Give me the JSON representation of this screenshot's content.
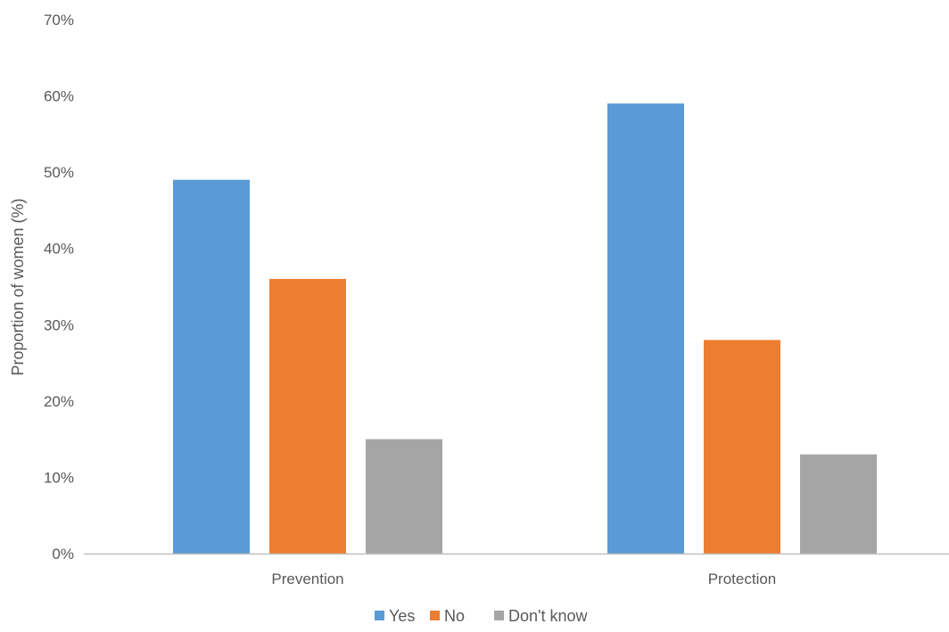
{
  "chart_data": {
    "type": "bar",
    "categories": [
      "Prevention",
      "Protection"
    ],
    "series": [
      {
        "name": "Yes",
        "values": [
          49,
          59
        ],
        "color": "#5B9BD5"
      },
      {
        "name": "No",
        "values": [
          36,
          28
        ],
        "color": "#ED7D31"
      },
      {
        "name": "Don't know",
        "values": [
          15,
          13
        ],
        "color": "#A5A5A5"
      }
    ],
    "title": "",
    "xlabel": "",
    "ylabel": "Proportion of women (%)",
    "ylim": [
      0,
      70
    ],
    "yticks": [
      "0%",
      "10%",
      "20%",
      "30%",
      "40%",
      "50%",
      "60%",
      "70%"
    ],
    "grid": false,
    "legend_position": "bottom",
    "axis_color": "#BFBFBF",
    "text_color": "#595959"
  }
}
